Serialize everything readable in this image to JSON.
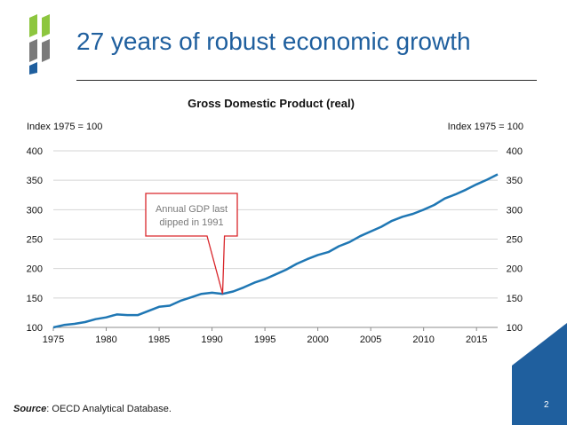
{
  "slide": {
    "title": "27 years of robust economic growth",
    "source_label": "Source",
    "source_text": ": OECD Analytical Database.",
    "page_number": "2"
  },
  "colors": {
    "title": "#1f5f9e",
    "line": "#1f77b4",
    "annotation_border": "#d9262b",
    "corner": "#1f5f9e",
    "logo_green": "#8dc63f"
  },
  "chart_data": {
    "type": "line",
    "title": "Gross Domestic Product (real)",
    "ylabel_left": "Index 1975 = 100",
    "ylabel_right": "Index 1975 = 100",
    "xlim": [
      1975,
      2017
    ],
    "ylim": [
      100,
      400
    ],
    "x_ticks": [
      "1975",
      "1980",
      "1985",
      "1990",
      "1995",
      "2000",
      "2005",
      "2010",
      "2015"
    ],
    "y_ticks": [
      "100",
      "150",
      "200",
      "250",
      "300",
      "350",
      "400"
    ],
    "grid": "horizontal",
    "annotation": {
      "text": [
        "Annual GDP last",
        "dipped in 1991"
      ],
      "x": 1991,
      "y": 157
    },
    "series": [
      {
        "x": [
          1975,
          1976,
          1977,
          1978,
          1979,
          1980,
          1981,
          1982,
          1983,
          1984,
          1985,
          1986,
          1987,
          1988,
          1989,
          1990,
          1991,
          1992,
          1993,
          1994,
          1995,
          1996,
          1997,
          1998,
          1999,
          2000,
          2001,
          2002,
          2003,
          2004,
          2005,
          2006,
          2007,
          2008,
          2009,
          2010,
          2011,
          2012,
          2013,
          2014,
          2015,
          2016,
          2017
        ],
        "y": [
          100,
          104,
          106,
          109,
          114,
          117,
          122,
          121,
          121,
          128,
          135,
          137,
          145,
          151,
          157,
          159,
          157,
          161,
          168,
          176,
          182,
          190,
          198,
          208,
          216,
          223,
          228,
          238,
          245,
          255,
          263,
          271,
          281,
          288,
          293,
          300,
          308,
          319,
          326,
          334,
          343,
          351,
          360
        ]
      }
    ]
  }
}
